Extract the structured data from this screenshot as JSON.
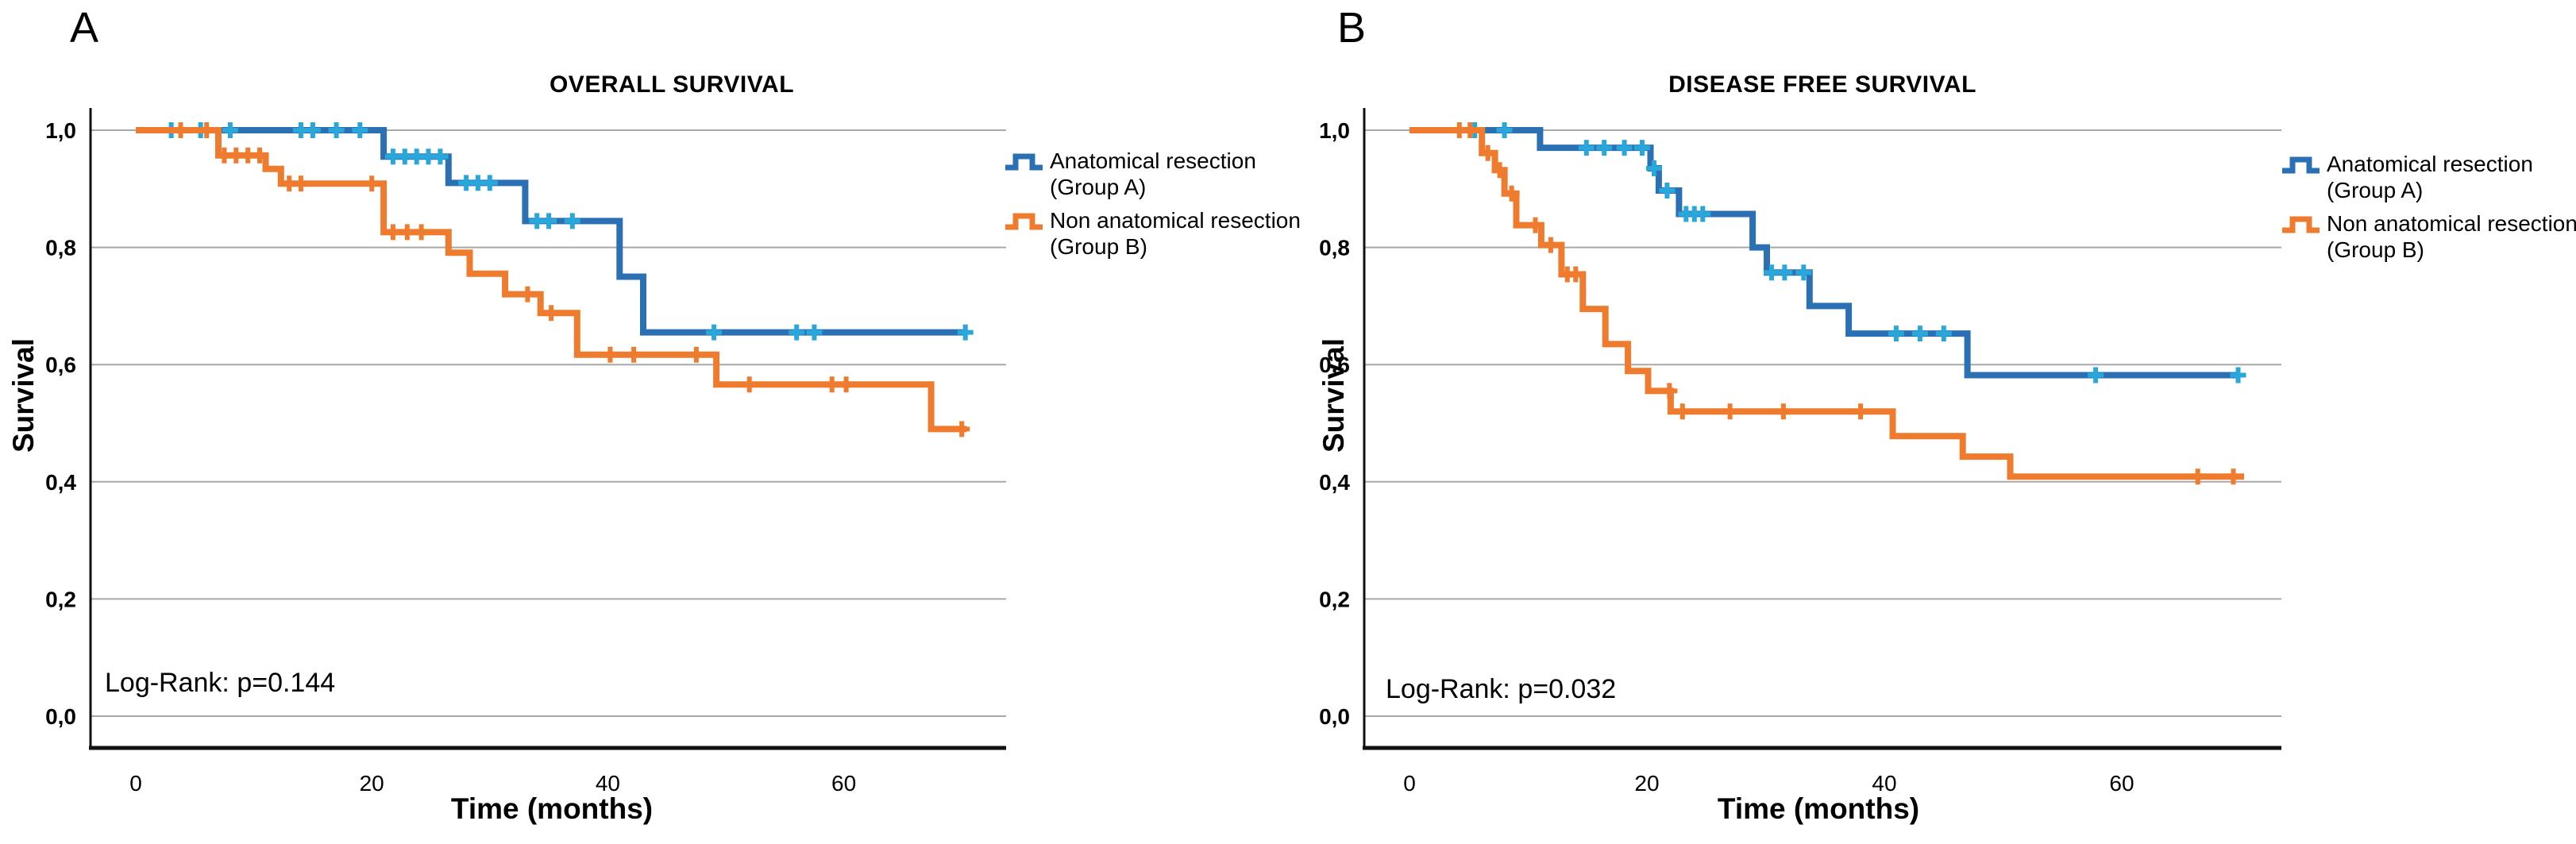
{
  "figure": {
    "background": "#ffffff",
    "grid_color": "#a8a8a8",
    "axis_color": "#111111",
    "text_color": "#000000"
  },
  "chart_data": [
    {
      "type": "line",
      "subtype": "kaplan-meier-step",
      "panel_letter": "A",
      "title": "OVERALL SURVIVAL",
      "xlabel": "Time (months)",
      "ylabel": "Survival",
      "annotation": "Log-Rank: p=0.144",
      "x_ticks": [
        0,
        20,
        40,
        60
      ],
      "y_tick_labels": [
        "1,0",
        "0,8",
        "0,6",
        "0,4",
        "0,2",
        "0,0"
      ],
      "y_tick_values": [
        1.0,
        0.8,
        0.6,
        0.4,
        0.2,
        0.0
      ],
      "xlim": [
        0,
        74
      ],
      "ylim": [
        0.0,
        1.0
      ],
      "grid": true,
      "legend_position": "right",
      "legend": [
        {
          "label_line1": "Anatomical resection",
          "label_line2": "(Group A)",
          "color": "#2c70b4"
        },
        {
          "label_line1": "Non anatomical resection",
          "label_line2": "(Group B)",
          "color": "#ee7b2e"
        }
      ],
      "series": [
        {
          "name": "Anatomical resection (Group A)",
          "color": "#2c70b4",
          "censor_color": "#2aa7da",
          "steps": [
            [
              0,
              1.0
            ],
            [
              21,
              0.955
            ],
            [
              26.5,
              0.91
            ],
            [
              33,
              0.845
            ],
            [
              41,
              0.75
            ],
            [
              43,
              0.655
            ]
          ],
          "end_time": 70.5,
          "censor_times": [
            3,
            5.5,
            8,
            14,
            15,
            17,
            19,
            21.8,
            22.8,
            23.8,
            24.8,
            25.8,
            28,
            29,
            30,
            34,
            35,
            37,
            49,
            56,
            57.5,
            70.3
          ]
        },
        {
          "name": "Non anatomical resection (Group B)",
          "color": "#ee7b2e",
          "censor_color": "#ee7b2e",
          "steps": [
            [
              0,
              1.0
            ],
            [
              7,
              0.957
            ],
            [
              11,
              0.934
            ],
            [
              12.3,
              0.909
            ],
            [
              21,
              0.826
            ],
            [
              26.5,
              0.791
            ],
            [
              28.3,
              0.755
            ],
            [
              31.3,
              0.72
            ],
            [
              34.3,
              0.688
            ],
            [
              37.4,
              0.617
            ],
            [
              49.2,
              0.566
            ],
            [
              67.4,
              0.49
            ]
          ],
          "end_time": 70.4,
          "censor_times": [
            3.8,
            6,
            7.5,
            8.5,
            9.5,
            10.5,
            13,
            14,
            20,
            21.8,
            23,
            24.2,
            33.2,
            35.2,
            40.2,
            42.2,
            47.5,
            52,
            59,
            60.2,
            70
          ]
        }
      ]
    },
    {
      "type": "line",
      "subtype": "kaplan-meier-step",
      "panel_letter": "B",
      "title": "DISEASE FREE SURVIVAL",
      "xlabel": "Time (months)",
      "ylabel": "Survival",
      "annotation": "Log-Rank: p=0.032",
      "x_ticks": [
        0,
        20,
        40,
        60
      ],
      "y_tick_labels": [
        "1,0",
        "0,8",
        "0,6",
        "0,4",
        "0,2",
        "0,0"
      ],
      "y_tick_values": [
        1.0,
        0.8,
        0.6,
        0.4,
        0.2,
        0.0
      ],
      "xlim": [
        0,
        74
      ],
      "ylim": [
        0.0,
        1.0
      ],
      "grid": true,
      "legend_position": "right",
      "legend": [
        {
          "label_line1": "Anatomical resection",
          "label_line2": "(Group A)",
          "color": "#2c70b4"
        },
        {
          "label_line1": "Non anatomical resection",
          "label_line2": "(Group B)",
          "color": "#ee7b2e"
        }
      ],
      "series": [
        {
          "name": "Anatomical resection (Group A)",
          "color": "#2c70b4",
          "censor_color": "#2aa7da",
          "steps": [
            [
              0,
              1.0
            ],
            [
              11,
              0.97
            ],
            [
              20.3,
              0.935
            ],
            [
              21,
              0.897
            ],
            [
              22.7,
              0.857
            ],
            [
              28.9,
              0.8
            ],
            [
              30.1,
              0.757
            ],
            [
              33.7,
              0.7
            ],
            [
              37,
              0.653
            ],
            [
              47,
              0.582
            ]
          ],
          "end_time": 70,
          "censor_times": [
            5.5,
            8,
            14.9,
            16.4,
            18.1,
            19.6,
            20.6,
            21.7,
            23.3,
            24,
            24.7,
            30.5,
            31.6,
            33.2,
            41,
            43,
            45,
            57.8,
            69.8
          ]
        },
        {
          "name": "Non anatomical resection (Group B)",
          "color": "#ee7b2e",
          "censor_color": "#ee7b2e",
          "steps": [
            [
              0,
              1.0
            ],
            [
              6.1,
              0.961
            ],
            [
              7.2,
              0.932
            ],
            [
              8,
              0.892
            ],
            [
              9,
              0.838
            ],
            [
              11.1,
              0.804
            ],
            [
              12.8,
              0.754
            ],
            [
              14.6,
              0.695
            ],
            [
              16.5,
              0.635
            ],
            [
              18.4,
              0.589
            ],
            [
              20.1,
              0.555
            ],
            [
              22,
              0.52
            ],
            [
              40.7,
              0.478
            ],
            [
              46.6,
              0.443
            ],
            [
              50.6,
              0.409
            ]
          ],
          "end_time": 70.3,
          "censor_times": [
            4.2,
            5.1,
            6.6,
            7.6,
            8.6,
            10.6,
            11.9,
            13.3,
            14,
            21.9,
            23,
            27,
            31.5,
            38,
            66.4,
            69.4
          ]
        }
      ]
    }
  ]
}
